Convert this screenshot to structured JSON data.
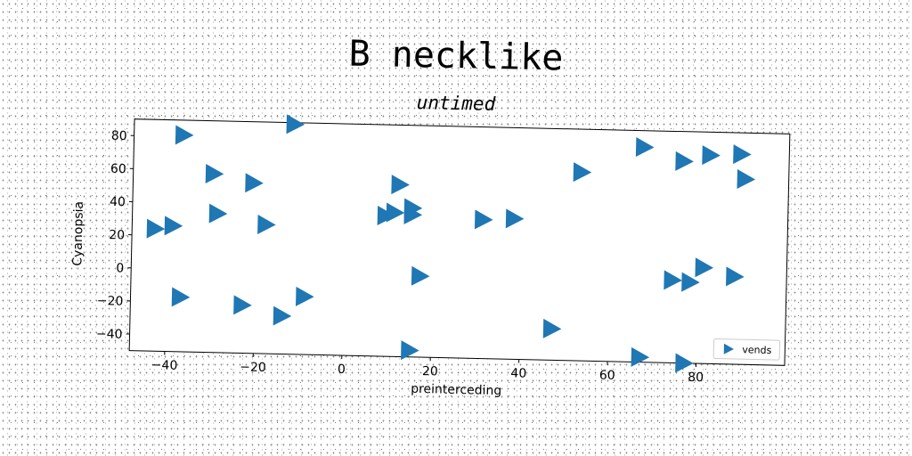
{
  "chart_data": {
    "type": "scatter",
    "title": "B necklike",
    "subtitle": "untimed",
    "xlabel": "preinterceding",
    "ylabel": "Cyanopsia",
    "xlim": [
      -48,
      100
    ],
    "ylim": [
      -50,
      90
    ],
    "xticks": [
      -40,
      -20,
      0,
      20,
      40,
      60,
      80
    ],
    "yticks": [
      80,
      60,
      40,
      20,
      0,
      -20,
      -40
    ],
    "xtick_labels": [
      "−40",
      "−20",
      "0",
      "20",
      "40",
      "60",
      "80"
    ],
    "ytick_labels": [
      "80",
      "60",
      "40",
      "20",
      "0",
      "−20",
      "−40"
    ],
    "grid": false,
    "legend_position": "lower right",
    "series": [
      {
        "name": "vends",
        "color": "#1f77b4",
        "marker": "triangle-right",
        "points": [
          {
            "x": -37,
            "y": 81
          },
          {
            "x": -12,
            "y": 89
          },
          {
            "x": -30,
            "y": 58
          },
          {
            "x": -21,
            "y": 53
          },
          {
            "x": -29,
            "y": 34
          },
          {
            "x": -18,
            "y": 28
          },
          {
            "x": -43,
            "y": 24
          },
          {
            "x": -39,
            "y": 26
          },
          {
            "x": -37,
            "y": -17
          },
          {
            "x": -23,
            "y": -21
          },
          {
            "x": -14,
            "y": -27
          },
          {
            "x": -9,
            "y": -15
          },
          {
            "x": 12,
            "y": 54
          },
          {
            "x": 9,
            "y": 35
          },
          {
            "x": 11,
            "y": 37
          },
          {
            "x": 15,
            "y": 36
          },
          {
            "x": 15,
            "y": 40
          },
          {
            "x": 31,
            "y": 34
          },
          {
            "x": 38,
            "y": 35
          },
          {
            "x": 17,
            "y": -1
          },
          {
            "x": 15,
            "y": -46
          },
          {
            "x": 53,
            "y": 64
          },
          {
            "x": 47,
            "y": -31
          },
          {
            "x": 67,
            "y": 80
          },
          {
            "x": 76,
            "y": 72
          },
          {
            "x": 82,
            "y": 76
          },
          {
            "x": 89,
            "y": 77
          },
          {
            "x": 90,
            "y": 62
          },
          {
            "x": 74,
            "y": 0
          },
          {
            "x": 78,
            "y": -1
          },
          {
            "x": 81,
            "y": 8
          },
          {
            "x": 88,
            "y": 3
          },
          {
            "x": 67,
            "y": -47
          },
          {
            "x": 77,
            "y": -50
          }
        ]
      }
    ]
  }
}
